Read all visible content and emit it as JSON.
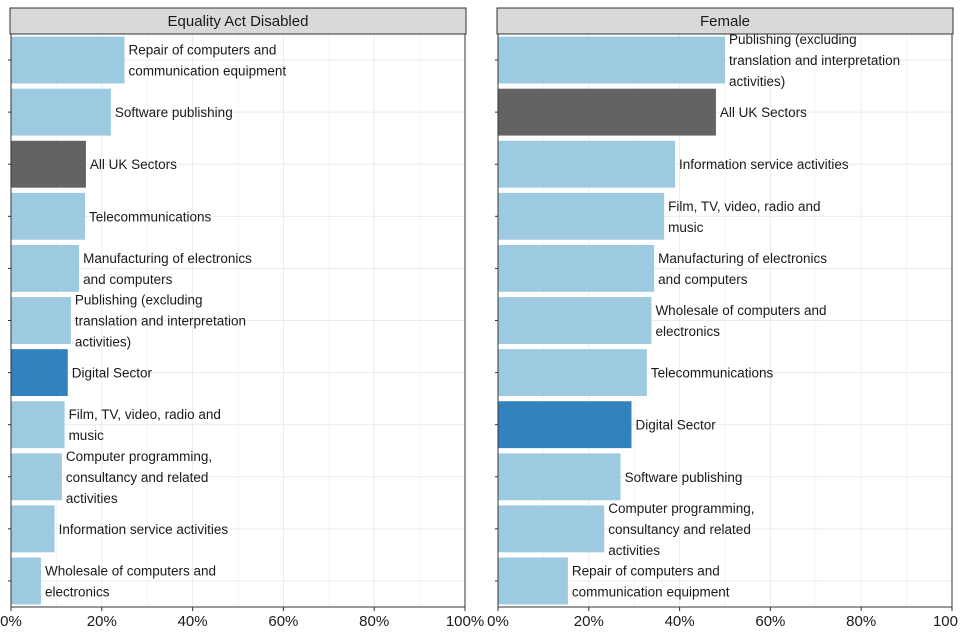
{
  "chart_data": [
    {
      "type": "bar",
      "orientation": "horizontal",
      "title": "Equality Act Disabled",
      "xlim": [
        0,
        100
      ],
      "x_ticks": [
        "0%",
        "20%",
        "40%",
        "60%",
        "80%",
        "100%"
      ],
      "grid": true,
      "bars": [
        {
          "label": "Repair of computers and\ncommunication equipment",
          "value": 25,
          "color_role": "sector"
        },
        {
          "label": "Software publishing",
          "value": 22,
          "color_role": "sector"
        },
        {
          "label": "All UK Sectors",
          "value": 16.5,
          "color_role": "uk"
        },
        {
          "label": "Telecommunications",
          "value": 16.3,
          "color_role": "sector"
        },
        {
          "label": "Manufacturing of electronics\nand computers",
          "value": 15,
          "color_role": "sector"
        },
        {
          "label": "Publishing (excluding\ntranslation and interpretation\nactivities)",
          "value": 13.2,
          "color_role": "sector"
        },
        {
          "label": "Digital Sector",
          "value": 12.5,
          "color_role": "digital"
        },
        {
          "label": "Film, TV, video, radio and\nmusic",
          "value": 11.8,
          "color_role": "sector"
        },
        {
          "label": "Computer programming,\nconsultancy and related\nactivities",
          "value": 11.2,
          "color_role": "sector"
        },
        {
          "label": "Information service activities",
          "value": 9.6,
          "color_role": "sector"
        },
        {
          "label": "Wholesale of computers and\nelectronics",
          "value": 6.6,
          "color_role": "sector"
        }
      ]
    },
    {
      "type": "bar",
      "orientation": "horizontal",
      "title": "Female",
      "xlim": [
        0,
        100
      ],
      "x_ticks": [
        "0%",
        "20%",
        "40%",
        "60%",
        "80%",
        "100"
      ],
      "grid": true,
      "bars": [
        {
          "label": "Publishing (excluding\ntranslation and interpretation\nactivities)",
          "value": 50,
          "color_role": "sector"
        },
        {
          "label": "All UK Sectors",
          "value": 48,
          "color_role": "uk"
        },
        {
          "label": "Information service activities",
          "value": 39,
          "color_role": "sector"
        },
        {
          "label": "Film, TV, video, radio and\nmusic",
          "value": 36.6,
          "color_role": "sector"
        },
        {
          "label": "Manufacturing of electronics\nand computers",
          "value": 34.4,
          "color_role": "sector"
        },
        {
          "label": "Wholesale of computers and\nelectronics",
          "value": 33.8,
          "color_role": "sector"
        },
        {
          "label": "Telecommunications",
          "value": 32.8,
          "color_role": "sector"
        },
        {
          "label": "Digital Sector",
          "value": 29.4,
          "color_role": "digital"
        },
        {
          "label": "Software publishing",
          "value": 27,
          "color_role": "sector"
        },
        {
          "label": "Computer programming,\nconsultancy and related\nactivities",
          "value": 23.4,
          "color_role": "sector"
        },
        {
          "label": "Repair of computers and\ncommunication equipment",
          "value": 15.4,
          "color_role": "sector"
        }
      ]
    }
  ],
  "colors": {
    "sector": "#9ecae1",
    "digital": "#3182bd",
    "uk": "#636363",
    "strip_fill": "#d9d9d9",
    "strip_border": "#333333",
    "panel_border": "#333333",
    "grid_major": "#ebebeb",
    "grid_minor": "#f5f5f5"
  }
}
